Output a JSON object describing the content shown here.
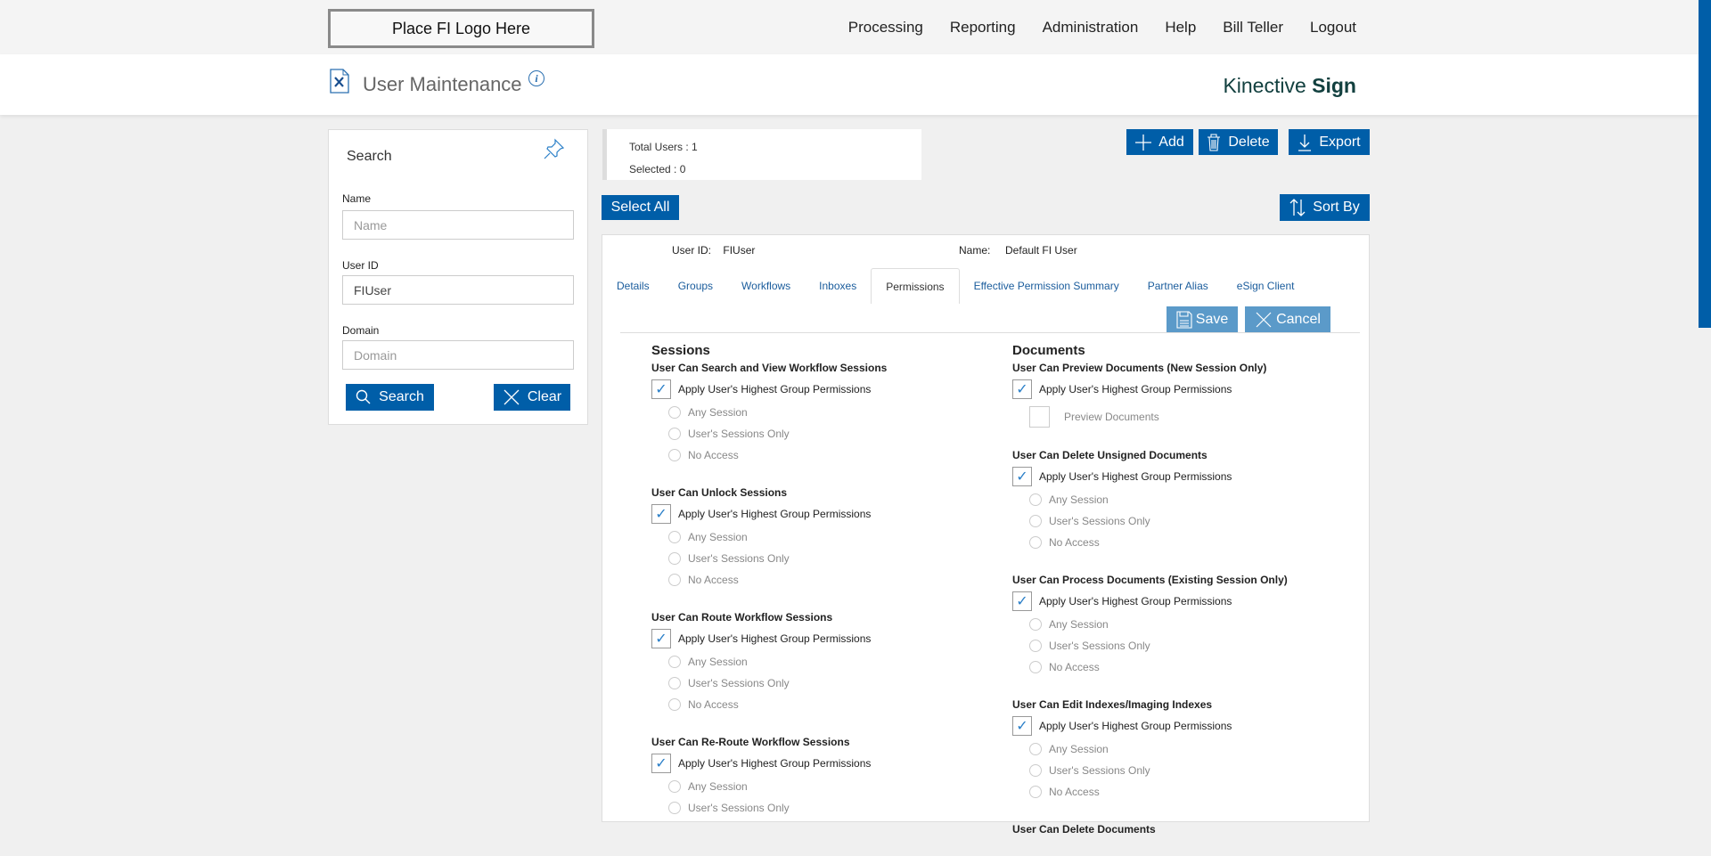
{
  "topbar": {
    "logo": "Place FI Logo Here",
    "nav": [
      "Processing",
      "Reporting",
      "Administration",
      "Help",
      "Bill Teller",
      "Logout"
    ]
  },
  "header": {
    "title": "User Maintenance",
    "brand_light": "Kinective ",
    "brand_bold": "Sign"
  },
  "search": {
    "title": "Search",
    "name_label": "Name",
    "name_placeholder": "Name",
    "name_value": "",
    "userid_label": "User ID",
    "userid_value": "FIUser",
    "domain_label": "Domain",
    "domain_placeholder": "Domain",
    "search_btn": "Search",
    "clear_btn": "Clear"
  },
  "stats": {
    "total": "Total Users : 1",
    "selected": "Selected : 0"
  },
  "toolbar": {
    "add": "Add",
    "delete": "Delete",
    "export": "Export",
    "select_all": "Select All",
    "sort_by": "Sort By"
  },
  "user": {
    "id_label": "User ID:",
    "id": "FIUser",
    "name_label": "Name:",
    "name": "Default FI User"
  },
  "tabs": [
    "Details",
    "Groups",
    "Workflows",
    "Inboxes",
    "Permissions",
    "Effective Permission Summary",
    "Partner Alias",
    "eSign Client"
  ],
  "active_tab": "Permissions",
  "actions": {
    "save": "Save",
    "cancel": "Cancel"
  },
  "accent_color": "#005ea8",
  "sessions": {
    "title": "Sessions",
    "groups": [
      {
        "title": "User Can Search and View Workflow Sessions",
        "apply": "Apply User's Highest Group Permissions",
        "checked": true,
        "options": [
          "Any Session",
          "User's Sessions Only",
          "No Access"
        ]
      },
      {
        "title": "User Can Unlock Sessions",
        "apply": "Apply User's Highest Group Permissions",
        "checked": true,
        "options": [
          "Any Session",
          "User's Sessions Only",
          "No Access"
        ]
      },
      {
        "title": "User Can Route Workflow Sessions",
        "apply": "Apply User's Highest Group Permissions",
        "checked": true,
        "options": [
          "Any Session",
          "User's Sessions Only",
          "No Access"
        ]
      },
      {
        "title": "User Can Re-Route Workflow Sessions",
        "apply": "Apply User's Highest Group Permissions",
        "checked": true,
        "options": [
          "Any Session",
          "User's Sessions Only"
        ]
      }
    ]
  },
  "documents": {
    "title": "Documents",
    "groups": [
      {
        "title": "User Can Preview Documents (New Session Only)",
        "apply": "Apply User's Highest Group Permissions",
        "checked": true,
        "sub_checkbox": "Preview Documents"
      },
      {
        "title": "User Can Delete Unsigned Documents",
        "apply": "Apply User's Highest Group Permissions",
        "checked": true,
        "options": [
          "Any Session",
          "User's Sessions Only",
          "No Access"
        ]
      },
      {
        "title": "User Can Process Documents (Existing Session Only)",
        "apply": "Apply User's Highest Group Permissions",
        "checked": true,
        "options": [
          "Any Session",
          "User's Sessions Only",
          "No Access"
        ]
      },
      {
        "title": "User Can Edit Indexes/Imaging Indexes",
        "apply": "Apply User's Highest Group Permissions",
        "checked": true,
        "options": [
          "Any Session",
          "User's Sessions Only",
          "No Access"
        ]
      },
      {
        "title": "User Can Delete Documents"
      }
    ]
  }
}
